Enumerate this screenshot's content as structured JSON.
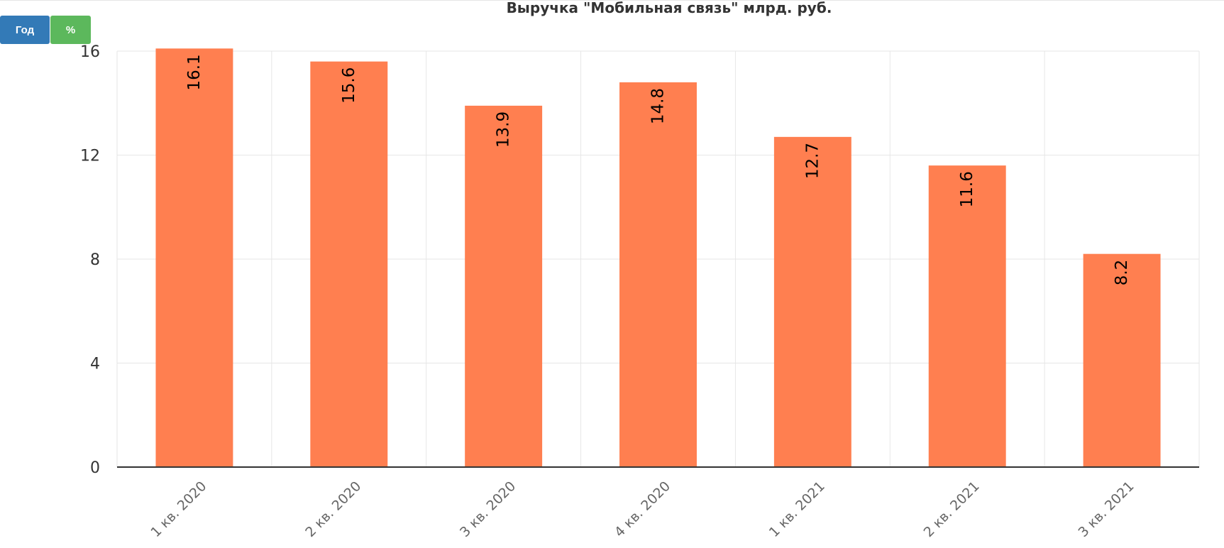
{
  "toolbar": {
    "year_label": "Год",
    "percent_label": "%",
    "year_color": "#337ab7",
    "percent_color": "#5cb85c"
  },
  "chart_data": {
    "type": "bar",
    "title": "Выручка \"Мобильная связь\" млрд. руб.",
    "categories": [
      "1 кв. 2020",
      "2 кв. 2020",
      "3 кв. 2020",
      "4 кв. 2020",
      "1 кв. 2021",
      "2 кв. 2021",
      "3 кв. 2021"
    ],
    "values": [
      16.1,
      15.6,
      13.9,
      14.8,
      12.7,
      11.6,
      8.2
    ],
    "xlabel": "",
    "ylabel": "",
    "ylim": [
      0,
      16
    ],
    "yticks": [
      0,
      4,
      8,
      12,
      16
    ],
    "grid": true,
    "bar_color": "#ff7f50"
  }
}
